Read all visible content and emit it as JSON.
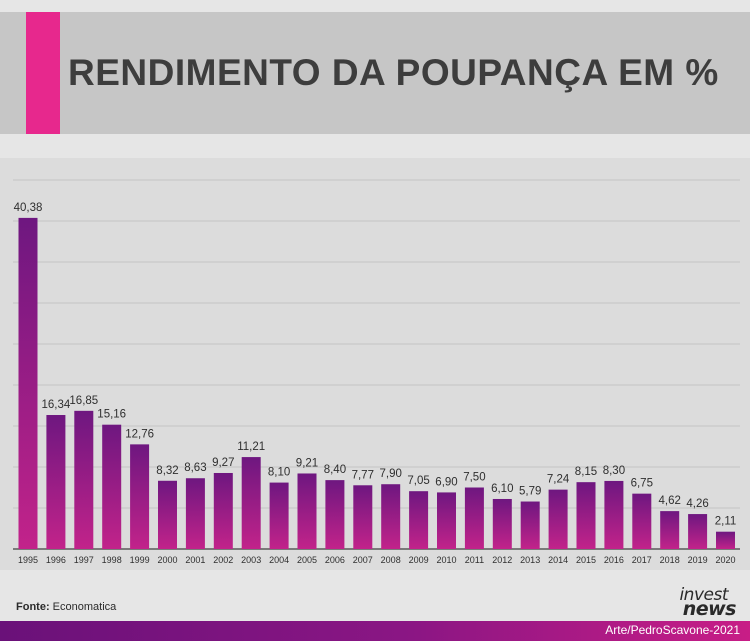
{
  "header": {
    "title": "RENDIMENTO DA POUPANÇA EM %"
  },
  "footer": {
    "source_label": "Fonte:",
    "source_value": "Economatica",
    "logo_line1": "invest",
    "logo_line2": "news",
    "credit": "Arte/PedroScavone-2021"
  },
  "colors": {
    "accent": "#e7288d",
    "bar_top": "#6e1780",
    "bar_bottom": "#c2238a",
    "header_bg": "#c6c6c6"
  },
  "chart_data": {
    "type": "bar",
    "title": "RENDIMENTO DA POUPANÇA EM %",
    "xlabel": "",
    "ylabel": "",
    "ylim": [
      0,
      45
    ],
    "grid": true,
    "categories": [
      "1995",
      "1996",
      "1997",
      "1998",
      "1999",
      "2000",
      "2001",
      "2002",
      "2003",
      "2004",
      "2005",
      "2006",
      "2007",
      "2008",
      "2009",
      "2010",
      "2011",
      "2012",
      "2013",
      "2014",
      "2015",
      "2016",
      "2017",
      "2018",
      "2019",
      "2020"
    ],
    "labels": [
      "40,38",
      "16,34",
      "16,85",
      "15,16",
      "12,76",
      "8,32",
      "8,63",
      "9,27",
      "11,21",
      "8,10",
      "9,21",
      "8,40",
      "7,77",
      "7,90",
      "7,05",
      "6,90",
      "7,50",
      "6,10",
      "5,79",
      "7,24",
      "8,15",
      "8,30",
      "6,75",
      "4,62",
      "4,26",
      "2,11"
    ],
    "values": [
      40.38,
      16.34,
      16.85,
      15.16,
      12.76,
      8.32,
      8.63,
      9.27,
      11.21,
      8.1,
      9.21,
      8.4,
      7.77,
      7.9,
      7.05,
      6.9,
      7.5,
      6.1,
      5.79,
      7.24,
      8.15,
      8.3,
      6.75,
      4.62,
      4.26,
      2.11
    ]
  }
}
